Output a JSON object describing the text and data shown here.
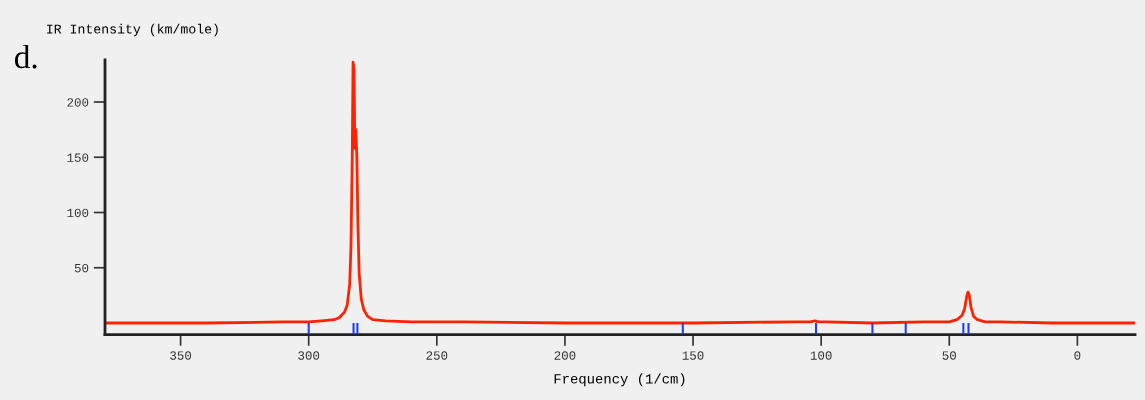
{
  "chart_data": {
    "type": "line",
    "xlabel": "Frequency (1/cm)",
    "ylabel": "IR Intensity (km/mole)",
    "annotations": [
      "d."
    ],
    "xlim": [
      379.5,
      -22.5
    ],
    "ylim": [
      -10.5,
      238
    ],
    "xticks": [
      350,
      300,
      250,
      200,
      150,
      100,
      50,
      0
    ],
    "yticks": [
      50,
      100,
      150,
      200
    ],
    "grid": false,
    "series": [
      {
        "color": "#ff2200",
        "x": [
          379,
          340,
          310,
          300,
          295,
          290,
          288,
          286,
          285,
          284,
          283.5,
          283,
          282.7,
          282.3,
          282,
          281.6,
          281.2,
          280.8,
          280.3,
          279.5,
          278.5,
          277,
          275,
          270,
          260,
          240,
          200,
          150,
          110,
          104,
          102.5,
          101,
          98,
          80,
          60,
          50,
          47,
          45,
          44,
          43.2,
          42.7,
          42.2,
          41.5,
          40.5,
          39,
          36,
          30,
          10,
          -22
        ],
        "values": [
          0,
          0,
          1,
          1,
          2,
          3,
          5,
          10,
          16,
          35,
          70,
          150,
          236,
          230,
          158,
          175,
          150,
          90,
          45,
          22,
          12,
          6,
          3,
          2,
          1,
          1,
          0,
          0,
          1,
          1,
          2,
          1,
          1,
          0,
          1,
          1,
          3,
          7,
          13,
          24,
          28,
          25,
          14,
          6,
          3,
          1,
          1,
          0,
          0
        ]
      },
      {
        "type": "bar",
        "color": "#1a3cff",
        "x": [
          300,
          282.5,
          281,
          154,
          102,
          80,
          67,
          44.5,
          42.5
        ],
        "values": [
          -10,
          -10,
          -10,
          -10,
          -10,
          -10,
          -10,
          -10,
          -10
        ]
      }
    ]
  }
}
